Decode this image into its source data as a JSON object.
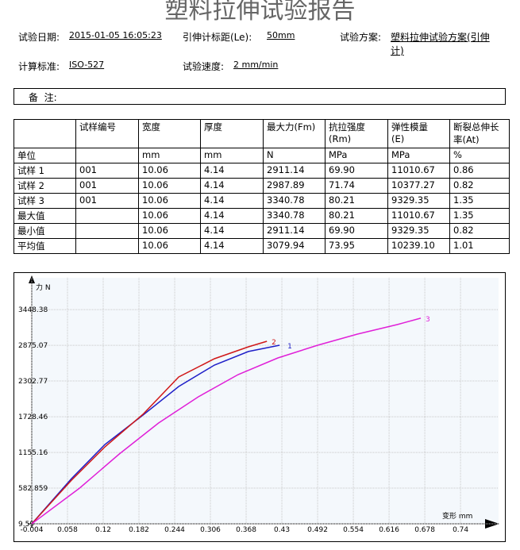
{
  "header": {
    "title": "塑料拉伸试验报告"
  },
  "info": [
    {
      "label": "试验日期:",
      "value": "2015-01-05 16:05:23"
    },
    {
      "label": "引伸计标距(Le):",
      "value": "50mm"
    },
    {
      "label": "试验方案:",
      "value": "塑料拉伸试验方案(引伸计)"
    },
    {
      "label": "计算标准:",
      "value": "ISO-527"
    },
    {
      "label": "试验速度:",
      "value": "2 mm/min"
    }
  ],
  "remark": {
    "label": "备  注:"
  },
  "table": {
    "header": [
      null,
      "试样编号",
      "宽度",
      "厚度",
      "最大力(Fm)",
      "抗拉强度\n(Rm)",
      "弹性模量\n(E)",
      "断裂总伸长率(At)"
    ],
    "rows": [
      [
        "单位",
        null,
        "mm",
        "mm",
        "N",
        "MPa",
        "MPa",
        "%"
      ],
      [
        "试样 1",
        "001",
        "10.06",
        "4.14",
        "2911.14",
        "69.90",
        "11010.67",
        "0.86"
      ],
      [
        "试样 2",
        "001",
        "10.06",
        "4.14",
        "2987.89",
        "71.74",
        "10377.27",
        "0.82"
      ],
      [
        "试样 3",
        "001",
        "10.06",
        "4.14",
        "3340.78",
        "80.21",
        "9329.35",
        "1.35"
      ],
      [
        "最大值",
        null,
        "10.06",
        "4.14",
        "3340.78",
        "80.21",
        "11010.67",
        "1.35"
      ],
      [
        "最小值",
        null,
        "10.06",
        "4.14",
        "2911.14",
        "69.90",
        "9329.35",
        "0.82"
      ],
      [
        "平均值",
        null,
        "10.06",
        "4.14",
        "3079.94",
        "73.95",
        "10239.10",
        "1.01"
      ]
    ]
  },
  "chart_data": {
    "type": "line",
    "y_label": "力 N",
    "x_label": "变形 mm",
    "xlim": [
      -0.004,
      0.806
    ],
    "ylim": [
      9.59,
      3959
    ],
    "xticks": [
      -0.004,
      0.058,
      0.12,
      0.182,
      0.244,
      0.306,
      0.368,
      0.43,
      0.492,
      0.554,
      0.616,
      0.678,
      0.74
    ],
    "yticks": [
      9.59,
      582.859,
      1155.16,
      1728.46,
      2302.77,
      2875.07,
      3448.38
    ],
    "grid": true,
    "series": [
      {
        "name": "1",
        "color": "#1f1fc8",
        "x": [
          -0.004,
          0.065,
          0.123,
          0.189,
          0.251,
          0.313,
          0.372,
          0.426
        ],
        "values": [
          9.59,
          736,
          1284,
          1755,
          2214,
          2558,
          2775,
          2876
        ]
      },
      {
        "name": "2",
        "color": "#d01818",
        "x": [
          -0.004,
          0.065,
          0.123,
          0.189,
          0.251,
          0.313,
          0.372,
          0.404
        ],
        "values": [
          9.59,
          710,
          1245,
          1768,
          2367,
          2660,
          2851,
          2940
        ]
      },
      {
        "name": "3",
        "color": "#e020d8",
        "x": [
          -0.004,
          0.079,
          0.148,
          0.216,
          0.285,
          0.354,
          0.423,
          0.492,
          0.561,
          0.63,
          0.671
        ],
        "values": [
          9.59,
          583,
          1131,
          1628,
          2048,
          2405,
          2672,
          2876,
          3054,
          3207,
          3310
        ]
      }
    ]
  }
}
